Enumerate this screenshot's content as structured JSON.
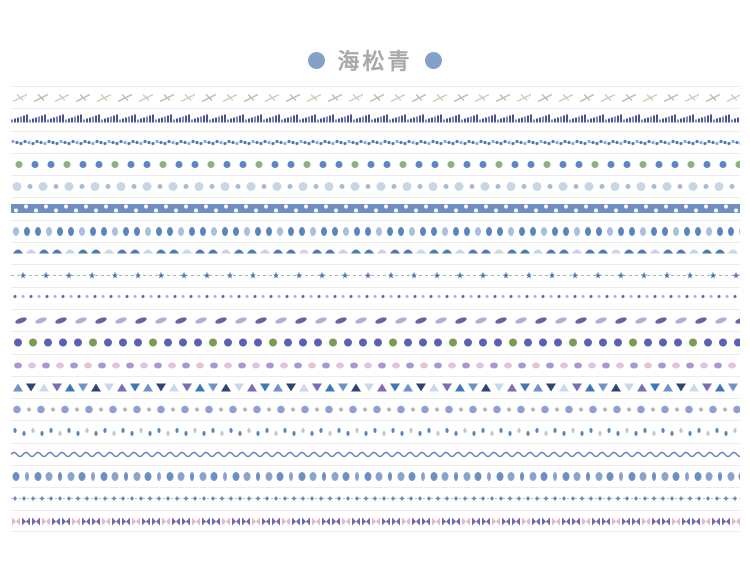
{
  "title": {
    "text": "海松青",
    "dot_color": "#84a2c9",
    "text_color": "#a9a9a9"
  },
  "strips": [
    {
      "motif": "dragonfly",
      "colors": [
        "#c9cfb8",
        "#b8bfa8"
      ]
    },
    {
      "motif": "grass",
      "colors": [
        "#4a5793",
        "#7d86b6"
      ]
    },
    {
      "motif": "vine",
      "colors": [
        "#4f7cb8",
        "#8aa8d0"
      ]
    },
    {
      "motif": "flower-leaf",
      "colors": [
        "#5b87c2",
        "#8cb17a"
      ]
    },
    {
      "motif": "bubble",
      "colors": [
        "#c9d6e6",
        "#a8bcd6"
      ]
    },
    {
      "motif": "polka-dot-band",
      "colors": [
        "#6f8fc2",
        "#ffffff"
      ]
    },
    {
      "motif": "leaf-drop",
      "colors": [
        "#5b86bd",
        "#a8c0dc"
      ]
    },
    {
      "motif": "umbrella-bird",
      "colors": [
        "#4f7cb0",
        "#c8d5e5"
      ]
    },
    {
      "motif": "star-dash",
      "colors": [
        "#4d73ad",
        "#a4b2c8"
      ]
    },
    {
      "motif": "scatter-star",
      "colors": [
        "#5a6aa0",
        "#a9b6c8"
      ]
    },
    {
      "motif": "feather",
      "colors": [
        "#6d62a6",
        "#b7aed6"
      ]
    },
    {
      "motif": "iris",
      "colors": [
        "#5a62b0",
        "#7b9a5a"
      ]
    },
    {
      "motif": "petal",
      "colors": [
        "#a79bd0",
        "#e4c4d8"
      ]
    },
    {
      "motif": "triangle",
      "colors": [
        "#6f93c8",
        "#2e4676",
        "#c8d9ea",
        "#7a6fb5",
        "#3f78b5"
      ]
    },
    {
      "motif": "hydrangea",
      "colors": [
        "#8f9fd0",
        "#b0b6c6"
      ]
    },
    {
      "motif": "raindrop",
      "colors": [
        "#5e85b8",
        "#b6c8dc"
      ]
    },
    {
      "motif": "wave",
      "colors": [
        "#5e82b8",
        "#a9bcd8"
      ]
    },
    {
      "motif": "tulip",
      "colors": [
        "#6d90c2",
        "#8ba4cc"
      ]
    },
    {
      "motif": "diamond-dash",
      "colors": [
        "#6f8ab8",
        "#b0bdd2"
      ]
    },
    {
      "motif": "butterfly",
      "colors": [
        "#7468a8",
        "#e0b8c8"
      ]
    }
  ]
}
